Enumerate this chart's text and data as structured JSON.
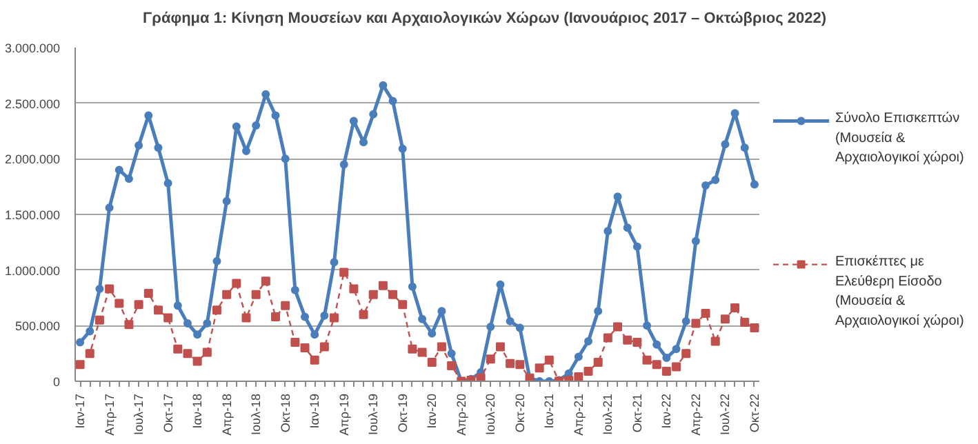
{
  "chart_data": {
    "type": "line",
    "title": "Γράφημα 1: Κίνηση Μουσείων και Αρχαιολογικών Χώρων (Ιανουάριος 2017 – Οκτώβριος  2022)",
    "categories": [
      "Ιαν-17",
      null,
      null,
      "Απρ-17",
      null,
      null,
      "Ιουλ-17",
      null,
      null,
      "Οκτ-17",
      null,
      null,
      "Ιαν-18",
      null,
      null,
      "Απρ-18",
      null,
      null,
      "Ιουλ-18",
      null,
      null,
      "Οκτ-18",
      null,
      null,
      "Ιαν-19",
      null,
      null,
      "Απρ-19",
      null,
      null,
      "Ιουλ-19",
      null,
      null,
      "Οκτ-19",
      null,
      null,
      "Ιαν-20",
      null,
      null,
      "Απρ-20",
      null,
      null,
      "Ιουλ-20",
      null,
      null,
      "Οκτ-20",
      null,
      null,
      "Ιαν-21",
      null,
      null,
      "Απρ-21",
      null,
      null,
      "Ιουλ-21",
      null,
      null,
      "Οκτ-21",
      null,
      null,
      "Ιαν-22",
      null,
      null,
      "Απρ-22",
      null,
      null,
      "Ιουλ-22",
      null,
      null,
      "Οκτ-22"
    ],
    "series": [
      {
        "name": "Σύνολο Επισκεπτών (Μουσεία & Αρχαιολογικοί χώροι)",
        "color": "#4a7ebb",
        "marker": "circle",
        "line_style": "solid",
        "values": [
          350000,
          450000,
          830000,
          1560000,
          1900000,
          1820000,
          2120000,
          2390000,
          2100000,
          1780000,
          680000,
          520000,
          420000,
          520000,
          1080000,
          1620000,
          2290000,
          2070000,
          2300000,
          2580000,
          2390000,
          2000000,
          820000,
          580000,
          420000,
          590000,
          1070000,
          1950000,
          2340000,
          2150000,
          2400000,
          2660000,
          2520000,
          2090000,
          850000,
          560000,
          430000,
          630000,
          250000,
          0,
          20000,
          80000,
          490000,
          870000,
          540000,
          480000,
          30000,
          0,
          0,
          10000,
          70000,
          220000,
          360000,
          630000,
          1350000,
          1660000,
          1380000,
          1210000,
          500000,
          330000,
          210000,
          290000,
          540000,
          1260000,
          1760000,
          1810000,
          2130000,
          2410000,
          2100000,
          1770000
        ]
      },
      {
        "name": "Επισκέπτες με Ελεύθερη Είσοδο (Μουσεία & Αρχαιολογικοί χώροι)",
        "color": "#c0504d",
        "marker": "square",
        "line_style": "dashed",
        "values": [
          150000,
          250000,
          550000,
          830000,
          700000,
          510000,
          690000,
          790000,
          640000,
          570000,
          290000,
          250000,
          180000,
          260000,
          640000,
          780000,
          880000,
          570000,
          780000,
          900000,
          580000,
          680000,
          350000,
          300000,
          190000,
          310000,
          570000,
          980000,
          830000,
          600000,
          780000,
          860000,
          780000,
          690000,
          290000,
          260000,
          170000,
          310000,
          140000,
          0,
          10000,
          30000,
          200000,
          310000,
          160000,
          150000,
          30000,
          120000,
          190000,
          0,
          10000,
          40000,
          90000,
          170000,
          390000,
          490000,
          370000,
          350000,
          190000,
          150000,
          90000,
          130000,
          250000,
          520000,
          610000,
          360000,
          560000,
          660000,
          530000,
          480000
        ]
      }
    ],
    "ylim": [
      0,
      3000000
    ],
    "yticks": [
      {
        "value": 0,
        "label": "0"
      },
      {
        "value": 500000,
        "label": "500.000"
      },
      {
        "value": 1000000,
        "label": "1.000.000"
      },
      {
        "value": 1500000,
        "label": "1.500.000"
      },
      {
        "value": 2000000,
        "label": "2.000.000"
      },
      {
        "value": 2500000,
        "label": "2.500.000"
      },
      {
        "value": 3000000,
        "label": "3.000.000"
      }
    ],
    "grid": "y",
    "legend": "right"
  }
}
